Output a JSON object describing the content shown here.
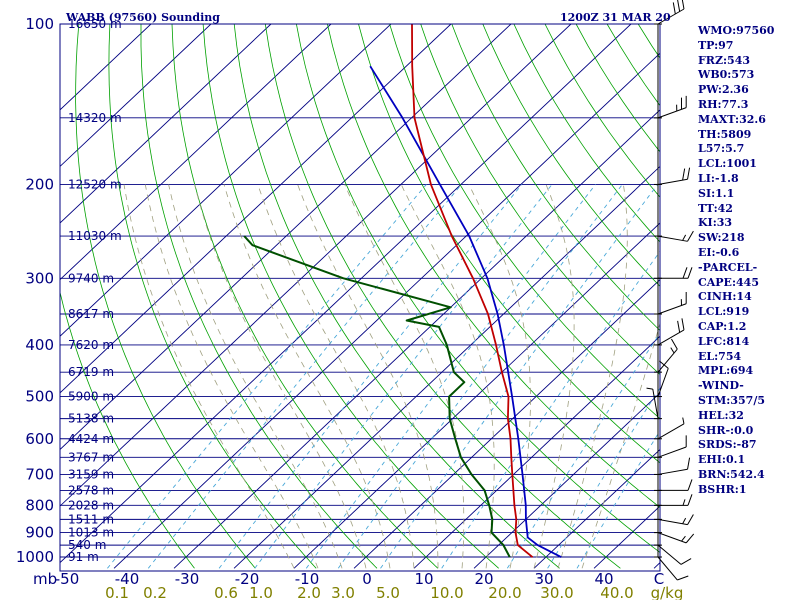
{
  "header": {
    "title": "WABB (97560) Sounding",
    "time": "1200Z 31 MAR 20"
  },
  "colors": {
    "frame": "#000080",
    "isobar": "#000080",
    "isotherm": "#000080",
    "dry_adiabat": "#00a000",
    "moist_adiabat": "#a0a080",
    "mixing_ratio": "#4aa8d8",
    "temperature": "#c00000",
    "dewpoint": "#005000",
    "parcel": "#0000c0",
    "wind": "#000000"
  },
  "indices": [
    "WMO:97560",
    "TP:97",
    "FRZ:543",
    "WB0:573",
    "PW:2.36",
    "RH:77.3",
    "MAXT:32.6",
    "TH:5809",
    "L57:5.7",
    "LCL:1001",
    "LI:-1.8",
    "SI:1.1",
    "TT:42",
    "KI:33",
    "SW:218",
    "EI:-0.6",
    "-PARCEL-",
    "CAPE:445",
    "CINH:14",
    "LCL:919",
    "CAP:1.2",
    "LFC:814",
    "EL:754",
    "MPL:694",
    "-WIND-",
    "STM:357/5",
    "HEL:32",
    "SHR-:0.0",
    "SRDS:-87",
    "EHI:0.1",
    "BRN:542.4",
    "BSHR:1"
  ],
  "chart_data": {
    "type": "skew-t",
    "pressure_labels": [
      "100",
      "200",
      "300",
      "400",
      "500",
      "600",
      "700",
      "800",
      "900",
      "1000"
    ],
    "units_label": "mb",
    "temp_axis_labels": [
      "-50",
      "-40",
      "-30",
      "-20",
      "-10",
      "0",
      "10",
      "20",
      "30",
      "40",
      "C"
    ],
    "mixing_ratio_labels": [
      "0.1",
      "0.2",
      "0.6",
      "1.0",
      "2.0",
      "3.0",
      "5.0",
      "10.0",
      "20.0",
      "30.0",
      "40.0",
      "g/kg"
    ],
    "height_labels": [
      {
        "p": 100,
        "label": "16650 m"
      },
      {
        "p": 150,
        "label": "14320 m"
      },
      {
        "p": 200,
        "label": "12520 m"
      },
      {
        "p": 250,
        "label": "11030 m"
      },
      {
        "p": 300,
        "label": "9740 m"
      },
      {
        "p": 350,
        "label": "8617 m"
      },
      {
        "p": 400,
        "label": "7620 m"
      },
      {
        "p": 450,
        "label": "6719 m"
      },
      {
        "p": 500,
        "label": "5900 m"
      },
      {
        "p": 550,
        "label": "5138 m"
      },
      {
        "p": 600,
        "label": "4424 m"
      },
      {
        "p": 650,
        "label": "3767 m"
      },
      {
        "p": 700,
        "label": "3159 m"
      },
      {
        "p": 750,
        "label": "2578 m"
      },
      {
        "p": 800,
        "label": "2028 m"
      },
      {
        "p": 850,
        "label": "1511 m"
      },
      {
        "p": 900,
        "label": "1013 m"
      },
      {
        "p": 950,
        "label": "540 m"
      },
      {
        "p": 1000,
        "label": "91 m"
      }
    ],
    "ylim": [
      1000,
      100
    ],
    "xlim": [
      -50,
      50
    ],
    "temperature": [
      {
        "p": 1001,
        "t": 27.8
      },
      {
        "p": 950,
        "t": 23.2
      },
      {
        "p": 900,
        "t": 20.6
      },
      {
        "p": 850,
        "t": 18.4
      },
      {
        "p": 800,
        "t": 15.6
      },
      {
        "p": 750,
        "t": 12.8
      },
      {
        "p": 700,
        "t": 9.8
      },
      {
        "p": 650,
        "t": 6.6
      },
      {
        "p": 600,
        "t": 3.2
      },
      {
        "p": 550,
        "t": -0.8
      },
      {
        "p": 500,
        "t": -4.6
      },
      {
        "p": 450,
        "t": -10.0
      },
      {
        "p": 400,
        "t": -15.8
      },
      {
        "p": 350,
        "t": -22.6
      },
      {
        "p": 300,
        "t": -31.4
      },
      {
        "p": 250,
        "t": -42.4
      },
      {
        "p": 200,
        "t": -55.0
      },
      {
        "p": 150,
        "t": -69.5
      },
      {
        "p": 120,
        "t": -79.0
      },
      {
        "p": 100,
        "t": -86.5
      }
    ],
    "dewpoint": [
      {
        "p": 1001,
        "t": 24.0
      },
      {
        "p": 950,
        "t": 20.8
      },
      {
        "p": 900,
        "t": 16.6
      },
      {
        "p": 850,
        "t": 14.4
      },
      {
        "p": 800,
        "t": 11.4
      },
      {
        "p": 750,
        "t": 8.0
      },
      {
        "p": 700,
        "t": 3.0
      },
      {
        "p": 650,
        "t": -1.8
      },
      {
        "p": 600,
        "t": -6.0
      },
      {
        "p": 550,
        "t": -10.5
      },
      {
        "p": 500,
        "t": -14.5
      },
      {
        "p": 470,
        "t": -14.5
      },
      {
        "p": 450,
        "t": -18.0
      },
      {
        "p": 400,
        "t": -24.0
      },
      {
        "p": 370,
        "t": -28.5
      },
      {
        "p": 360,
        "t": -35.0
      },
      {
        "p": 340,
        "t": -30.0
      },
      {
        "p": 300,
        "t": -53.0
      },
      {
        "p": 260,
        "t": -74.0
      },
      {
        "p": 250,
        "t": -77.0
      }
    ],
    "parcel": [
      {
        "p": 1001,
        "t": 32.6
      },
      {
        "p": 950,
        "t": 26.5
      },
      {
        "p": 919,
        "t": 23.5
      },
      {
        "p": 850,
        "t": 20.0
      },
      {
        "p": 800,
        "t": 17.5
      },
      {
        "p": 700,
        "t": 11.5
      },
      {
        "p": 600,
        "t": 4.5
      },
      {
        "p": 500,
        "t": -4.0
      },
      {
        "p": 400,
        "t": -14.5
      },
      {
        "p": 350,
        "t": -21.0
      },
      {
        "p": 300,
        "t": -29.0
      },
      {
        "p": 250,
        "t": -39.5
      },
      {
        "p": 200,
        "t": -53.5
      },
      {
        "p": 150,
        "t": -71.5
      },
      {
        "p": 120,
        "t": -86.0
      }
    ],
    "wind_barbs": [
      {
        "p": 1000,
        "dir": 140,
        "kt": 10
      },
      {
        "p": 950,
        "dir": 130,
        "kt": 10
      },
      {
        "p": 900,
        "dir": 110,
        "kt": 15
      },
      {
        "p": 850,
        "dir": 100,
        "kt": 15
      },
      {
        "p": 800,
        "dir": 90,
        "kt": 15
      },
      {
        "p": 750,
        "dir": 90,
        "kt": 10
      },
      {
        "p": 700,
        "dir": 80,
        "kt": 10
      },
      {
        "p": 650,
        "dir": 70,
        "kt": 10
      },
      {
        "p": 600,
        "dir": 60,
        "kt": 5
      },
      {
        "p": 550,
        "dir": 350,
        "kt": 5
      },
      {
        "p": 500,
        "dir": 20,
        "kt": 10
      },
      {
        "p": 450,
        "dir": 40,
        "kt": 15
      },
      {
        "p": 400,
        "dir": 60,
        "kt": 20
      },
      {
        "p": 350,
        "dir": 70,
        "kt": 15
      },
      {
        "p": 300,
        "dir": 90,
        "kt": 20
      },
      {
        "p": 250,
        "dir": 100,
        "kt": 15
      },
      {
        "p": 200,
        "dir": 80,
        "kt": 20
      },
      {
        "p": 150,
        "dir": 70,
        "kt": 25
      },
      {
        "p": 100,
        "dir": 60,
        "kt": 30
      }
    ]
  }
}
